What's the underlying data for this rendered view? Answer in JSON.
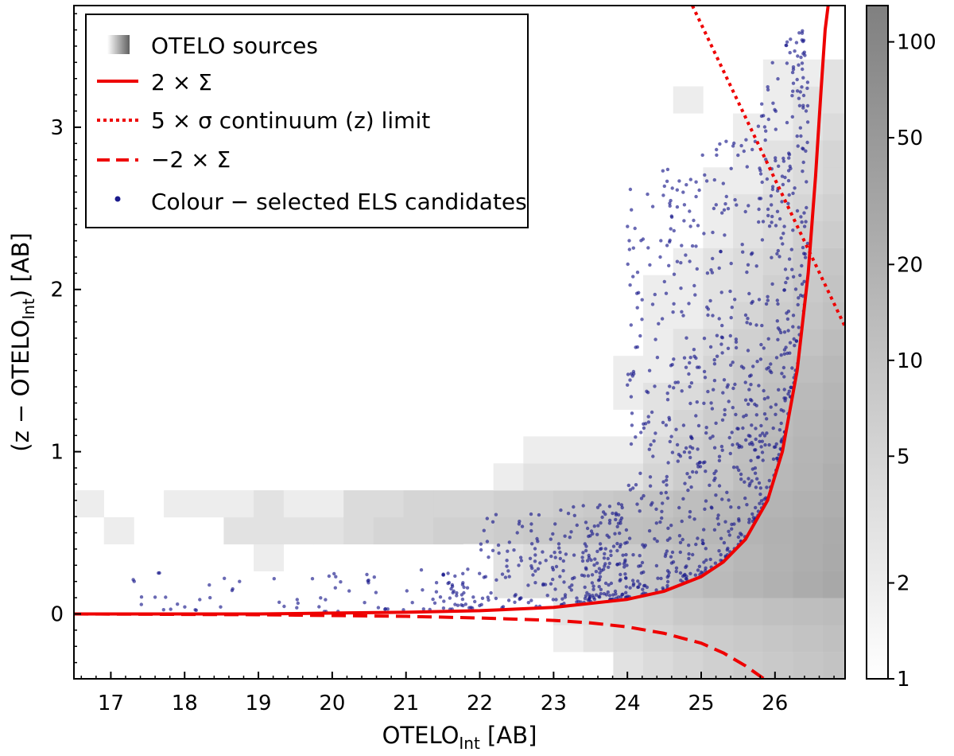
{
  "chart_data": {
    "type": "scatter",
    "xlabel_main": "OTELO",
    "xlabel_sub": "Int",
    "xlabel_tail": " [AB]",
    "ylabel_head": "(z − OTELO",
    "ylabel_sub": "Int",
    "ylabel_tail": ") [AB]",
    "xlim": [
      16.5,
      26.95
    ],
    "ylim": [
      -0.4,
      3.75
    ],
    "xticks": [
      17,
      18,
      19,
      20,
      21,
      22,
      23,
      24,
      25,
      26
    ],
    "yticks": [
      0,
      1,
      2,
      3
    ],
    "colorbar": {
      "scale": "log",
      "range": [
        1,
        130
      ],
      "ticks": [
        1,
        2,
        5,
        10,
        20,
        50,
        100
      ],
      "tick_labels": [
        "1",
        "2",
        "5",
        "10",
        "20",
        "50",
        "100"
      ],
      "colors": [
        "#ffffff",
        "#808080"
      ]
    },
    "legend": {
      "position": "top-left",
      "entries": [
        {
          "label": "OTELO sources",
          "style": "histogram"
        },
        {
          "label": "2 × Σ",
          "style": "solid",
          "color": "#ee0000"
        },
        {
          "label": "5 × σ continuum (z) limit",
          "style": "dotted",
          "color": "#ee0000"
        },
        {
          "label": "−2 × Σ",
          "style": "dashed",
          "color": "#ee0000"
        },
        {
          "label": "Colour − selected ELS candidates",
          "style": "point",
          "color": "#1a1a8c"
        }
      ]
    },
    "series": [
      {
        "name": "2 × Σ",
        "style": "solid",
        "color": "#ee0000",
        "x": [
          16.5,
          18,
          19,
          20,
          21,
          22,
          23,
          24,
          24.5,
          25,
          25.3,
          25.6,
          25.9,
          26.1,
          26.3,
          26.45,
          26.55,
          26.62,
          26.68,
          26.72
        ],
        "y": [
          0.0,
          0.0,
          0.0,
          0.005,
          0.01,
          0.02,
          0.04,
          0.09,
          0.14,
          0.23,
          0.32,
          0.46,
          0.7,
          1.0,
          1.5,
          2.1,
          2.7,
          3.2,
          3.6,
          3.75
        ]
      },
      {
        "name": "5 × σ continuum (z) limit",
        "style": "dotted",
        "color": "#ee0000",
        "x": [
          24.88,
          26.95
        ],
        "y": [
          3.75,
          1.77
        ]
      },
      {
        "name": "−2 × Σ",
        "style": "dashed",
        "color": "#ee0000",
        "x": [
          16.5,
          19,
          20,
          21,
          22,
          23,
          23.5,
          24,
          24.5,
          25,
          25.3,
          25.6,
          25.85
        ],
        "y": [
          0.0,
          -0.005,
          -0.01,
          -0.015,
          -0.025,
          -0.04,
          -0.055,
          -0.08,
          -0.12,
          -0.18,
          -0.24,
          -0.32,
          -0.4
        ]
      }
    ],
    "histogram": {
      "x_edges_start": 16.5,
      "x_bin": 0.406,
      "y_edges_start": -0.4,
      "y_bin": 0.166,
      "cells": [
        [
          0,
          6,
          2
        ],
        [
          1,
          5,
          2
        ],
        [
          3,
          5,
          1
        ],
        [
          3,
          6,
          2
        ],
        [
          4,
          6,
          2
        ],
        [
          5,
          5,
          3
        ],
        [
          5,
          6,
          2
        ],
        [
          6,
          4,
          2
        ],
        [
          6,
          5,
          3
        ],
        [
          6,
          6,
          3
        ],
        [
          7,
          5,
          3
        ],
        [
          7,
          6,
          2
        ],
        [
          8,
          5,
          3
        ],
        [
          8,
          6,
          2
        ],
        [
          9,
          5,
          4
        ],
        [
          9,
          6,
          4
        ],
        [
          10,
          5,
          5
        ],
        [
          10,
          6,
          4
        ],
        [
          11,
          5,
          5
        ],
        [
          11,
          6,
          5
        ],
        [
          12,
          5,
          6
        ],
        [
          12,
          6,
          5
        ],
        [
          13,
          5,
          6
        ],
        [
          13,
          6,
          5
        ],
        [
          13,
          4,
          1
        ],
        [
          14,
          5,
          7
        ],
        [
          14,
          6,
          6
        ],
        [
          14,
          4,
          3
        ],
        [
          14,
          3,
          3
        ],
        [
          14,
          7,
          2
        ],
        [
          15,
          5,
          8
        ],
        [
          15,
          6,
          6
        ],
        [
          15,
          4,
          4
        ],
        [
          15,
          3,
          4
        ],
        [
          15,
          7,
          3
        ],
        [
          15,
          8,
          2
        ],
        [
          16,
          5,
          9
        ],
        [
          16,
          6,
          7
        ],
        [
          16,
          4,
          5
        ],
        [
          16,
          3,
          5
        ],
        [
          16,
          7,
          3
        ],
        [
          16,
          8,
          2
        ],
        [
          16,
          1,
          2
        ],
        [
          16,
          2,
          3
        ],
        [
          17,
          5,
          10
        ],
        [
          17,
          6,
          8
        ],
        [
          17,
          4,
          6
        ],
        [
          17,
          3,
          6
        ],
        [
          17,
          7,
          3
        ],
        [
          17,
          8,
          2
        ],
        [
          17,
          1,
          3
        ],
        [
          17,
          2,
          4
        ],
        [
          18,
          5,
          11
        ],
        [
          18,
          6,
          9
        ],
        [
          18,
          4,
          7
        ],
        [
          18,
          3,
          7
        ],
        [
          18,
          7,
          3
        ],
        [
          18,
          8,
          2
        ],
        [
          18,
          10,
          2
        ],
        [
          18,
          11,
          2
        ],
        [
          18,
          1,
          4
        ],
        [
          18,
          2,
          5
        ],
        [
          18,
          0,
          3
        ],
        [
          18,
          12,
          1
        ],
        [
          18,
          13,
          1
        ],
        [
          18,
          14,
          1
        ],
        [
          19,
          5,
          12
        ],
        [
          19,
          6,
          10
        ],
        [
          19,
          4,
          9
        ],
        [
          19,
          3,
          9
        ],
        [
          19,
          7,
          5
        ],
        [
          19,
          8,
          4
        ],
        [
          19,
          9,
          3
        ],
        [
          19,
          10,
          3
        ],
        [
          19,
          11,
          2
        ],
        [
          19,
          12,
          2
        ],
        [
          19,
          13,
          2
        ],
        [
          19,
          14,
          2
        ],
        [
          19,
          15,
          1
        ],
        [
          19,
          1,
          5
        ],
        [
          19,
          2,
          6
        ],
        [
          19,
          0,
          4
        ],
        [
          20,
          5,
          14
        ],
        [
          20,
          6,
          12
        ],
        [
          20,
          4,
          11
        ],
        [
          20,
          3,
          11
        ],
        [
          20,
          7,
          7
        ],
        [
          20,
          8,
          6
        ],
        [
          20,
          9,
          5
        ],
        [
          20,
          10,
          4
        ],
        [
          20,
          11,
          3
        ],
        [
          20,
          12,
          3
        ],
        [
          20,
          13,
          2
        ],
        [
          20,
          14,
          2
        ],
        [
          20,
          15,
          2
        ],
        [
          20,
          16,
          1
        ],
        [
          20,
          17,
          1
        ],
        [
          20,
          18,
          1
        ],
        [
          20,
          21,
          2
        ],
        [
          20,
          1,
          6
        ],
        [
          20,
          2,
          8
        ],
        [
          20,
          0,
          5
        ],
        [
          21,
          5,
          16
        ],
        [
          21,
          6,
          14
        ],
        [
          21,
          4,
          13
        ],
        [
          21,
          3,
          14
        ],
        [
          21,
          7,
          9
        ],
        [
          21,
          8,
          8
        ],
        [
          21,
          9,
          7
        ],
        [
          21,
          10,
          6
        ],
        [
          21,
          11,
          5
        ],
        [
          21,
          12,
          4
        ],
        [
          21,
          13,
          3
        ],
        [
          21,
          14,
          3
        ],
        [
          21,
          15,
          3
        ],
        [
          21,
          16,
          2
        ],
        [
          21,
          17,
          2
        ],
        [
          21,
          18,
          2
        ],
        [
          21,
          19,
          1
        ],
        [
          21,
          20,
          1
        ],
        [
          21,
          1,
          7
        ],
        [
          21,
          2,
          9
        ],
        [
          21,
          0,
          6
        ],
        [
          22,
          5,
          18
        ],
        [
          22,
          6,
          16
        ],
        [
          22,
          4,
          16
        ],
        [
          22,
          3,
          17
        ],
        [
          22,
          7,
          12
        ],
        [
          22,
          8,
          11
        ],
        [
          22,
          9,
          10
        ],
        [
          22,
          10,
          8
        ],
        [
          22,
          11,
          7
        ],
        [
          22,
          12,
          6
        ],
        [
          22,
          13,
          5
        ],
        [
          22,
          14,
          4
        ],
        [
          22,
          15,
          4
        ],
        [
          22,
          16,
          3
        ],
        [
          22,
          17,
          3
        ],
        [
          22,
          18,
          2
        ],
        [
          22,
          19,
          2
        ],
        [
          22,
          20,
          2
        ],
        [
          22,
          21,
          1
        ],
        [
          22,
          22,
          1
        ],
        [
          22,
          1,
          8
        ],
        [
          22,
          2,
          10
        ],
        [
          22,
          0,
          7
        ],
        [
          23,
          5,
          20
        ],
        [
          23,
          6,
          18
        ],
        [
          23,
          4,
          19
        ],
        [
          23,
          3,
          20
        ],
        [
          23,
          7,
          15
        ],
        [
          23,
          8,
          14
        ],
        [
          23,
          9,
          13
        ],
        [
          23,
          10,
          11
        ],
        [
          23,
          11,
          10
        ],
        [
          23,
          12,
          8
        ],
        [
          23,
          13,
          7
        ],
        [
          23,
          14,
          6
        ],
        [
          23,
          15,
          5
        ],
        [
          23,
          16,
          4
        ],
        [
          23,
          17,
          4
        ],
        [
          23,
          18,
          3
        ],
        [
          23,
          19,
          3
        ],
        [
          23,
          20,
          2
        ],
        [
          23,
          21,
          2
        ],
        [
          23,
          22,
          2
        ],
        [
          23,
          1,
          9
        ],
        [
          23,
          2,
          11
        ],
        [
          23,
          0,
          8
        ],
        [
          24,
          5,
          22
        ],
        [
          24,
          6,
          20
        ],
        [
          24,
          4,
          22
        ],
        [
          24,
          3,
          24
        ],
        [
          24,
          7,
          18
        ],
        [
          24,
          8,
          17
        ],
        [
          24,
          9,
          16
        ],
        [
          24,
          10,
          14
        ],
        [
          24,
          11,
          12
        ],
        [
          24,
          12,
          10
        ],
        [
          24,
          13,
          9
        ],
        [
          24,
          14,
          8
        ],
        [
          24,
          15,
          7
        ],
        [
          24,
          16,
          6
        ],
        [
          24,
          17,
          5
        ],
        [
          24,
          18,
          4
        ],
        [
          24,
          19,
          4
        ],
        [
          24,
          20,
          3
        ],
        [
          24,
          21,
          3
        ],
        [
          24,
          22,
          2
        ],
        [
          24,
          1,
          10
        ],
        [
          24,
          2,
          12
        ],
        [
          24,
          0,
          9
        ],
        [
          25,
          5,
          25
        ],
        [
          25,
          6,
          22
        ],
        [
          25,
          4,
          26
        ],
        [
          25,
          3,
          28
        ],
        [
          25,
          7,
          22
        ],
        [
          25,
          8,
          20
        ],
        [
          25,
          9,
          19
        ],
        [
          25,
          10,
          17
        ],
        [
          25,
          11,
          15
        ],
        [
          25,
          12,
          13
        ],
        [
          25,
          13,
          11
        ],
        [
          25,
          14,
          10
        ],
        [
          25,
          15,
          9
        ],
        [
          25,
          16,
          7
        ],
        [
          25,
          17,
          6
        ],
        [
          25,
          18,
          5
        ],
        [
          25,
          19,
          5
        ],
        [
          25,
          20,
          4
        ],
        [
          25,
          21,
          3
        ],
        [
          25,
          22,
          3
        ],
        [
          25,
          1,
          11
        ],
        [
          25,
          2,
          13
        ],
        [
          25,
          0,
          10
        ],
        [
          26,
          5,
          28
        ],
        [
          26,
          6,
          25
        ],
        [
          26,
          4,
          30
        ],
        [
          26,
          3,
          32
        ],
        [
          26,
          7,
          26
        ],
        [
          26,
          8,
          24
        ],
        [
          26,
          9,
          22
        ],
        [
          26,
          10,
          20
        ],
        [
          26,
          11,
          18
        ],
        [
          26,
          12,
          16
        ],
        [
          26,
          13,
          14
        ],
        [
          26,
          14,
          12
        ],
        [
          26,
          15,
          10
        ],
        [
          26,
          16,
          8
        ],
        [
          26,
          17,
          7
        ],
        [
          26,
          18,
          6
        ],
        [
          26,
          19,
          6
        ],
        [
          26,
          20,
          5
        ],
        [
          26,
          21,
          4
        ],
        [
          26,
          22,
          3
        ],
        [
          26,
          1,
          12
        ],
        [
          26,
          2,
          14
        ],
        [
          26,
          0,
          11
        ]
      ]
    },
    "scatter": {
      "name": "Colour − selected ELS candidates",
      "color": "#1a1a8c"
    }
  }
}
